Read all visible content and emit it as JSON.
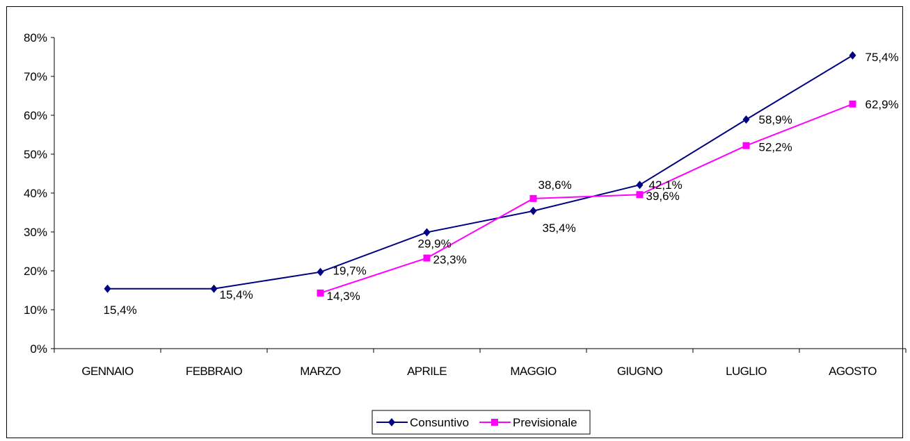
{
  "chart_data": {
    "type": "line",
    "title": "",
    "xlabel": "",
    "ylabel": "",
    "categories": [
      "GENNAIO",
      "FEBBRAIO",
      "MARZO",
      "APRILE",
      "MAGGIO",
      "GIUGNO",
      "LUGLIO",
      "AGOSTO"
    ],
    "ylim": [
      0,
      80
    ],
    "yticks": [
      "0%",
      "10%",
      "20%",
      "30%",
      "40%",
      "50%",
      "60%",
      "70%",
      "80%"
    ],
    "grid": false,
    "legend_position": "bottom",
    "series": [
      {
        "name": "Consuntivo",
        "color": "#000080",
        "marker": "diamond",
        "values": [
          15.4,
          15.4,
          19.7,
          29.9,
          35.4,
          42.1,
          58.9,
          75.4
        ],
        "labels": [
          "15,4%",
          "15,4%",
          "19,7%",
          "29,9%",
          "35,4%",
          "42,1%",
          "58,9%",
          "75,4%"
        ]
      },
      {
        "name": "Previsionale",
        "color": "#ff00ff",
        "marker": "square",
        "values": [
          null,
          null,
          14.3,
          23.3,
          38.6,
          39.6,
          52.2,
          62.9
        ],
        "labels": [
          null,
          null,
          "14,3%",
          "23,3%",
          "38,6%",
          "39,6%",
          "52,2%",
          "62,9%"
        ]
      }
    ]
  }
}
